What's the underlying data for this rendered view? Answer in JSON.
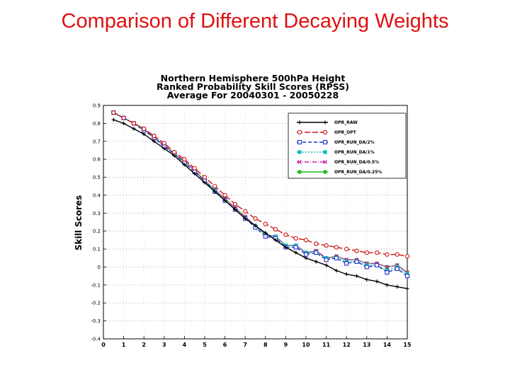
{
  "slide": {
    "title": "Comparison of Different Decaying Weights"
  },
  "chart_data": {
    "type": "line",
    "title_lines": [
      "Northern Hemisphere 500hPa Height",
      "Ranked Probability Skill Scores (RPSS)",
      "Average For 20040301 - 20050228"
    ],
    "xlabel": "",
    "ylabel": "Skill Scores",
    "xlim": [
      0,
      15
    ],
    "ylim": [
      -0.4,
      0.9
    ],
    "yticks": [
      0.9,
      0.8,
      0.7,
      0.6,
      0.5,
      0.4,
      0.3,
      0.2,
      0.1,
      0,
      -0.1,
      -0.2,
      -0.3,
      -0.4
    ],
    "ytick_labels": [
      "0.9",
      "0.8",
      "0.7",
      "0.6",
      "0.5",
      "0.4",
      "0.3",
      "0.2",
      "0.1",
      "0",
      "-0.1",
      "-0.2",
      "-0.3",
      "-0.4"
    ],
    "xticks": [
      0,
      1,
      2,
      3,
      4,
      5,
      6,
      7,
      8,
      9,
      10,
      11,
      12,
      13,
      14,
      15
    ],
    "xtick_labels": [
      "0",
      "1",
      "2",
      "3",
      "4",
      "5",
      "6",
      "7",
      "8",
      "9",
      "10",
      "11",
      "12",
      "13",
      "14",
      "15"
    ],
    "grid": true,
    "legend_position": "top-right",
    "x": [
      0.5,
      1,
      1.5,
      2,
      2.5,
      3,
      3.5,
      4,
      4.5,
      5,
      5.5,
      6,
      6.5,
      7,
      7.5,
      8,
      8.5,
      9,
      9.5,
      10,
      10.5,
      11,
      11.5,
      12,
      12.5,
      13,
      13.5,
      14,
      14.5,
      15
    ],
    "series": [
      {
        "name": "OPR_RAW",
        "color": "#000000",
        "dash": "",
        "marker": "plus",
        "values": [
          0.82,
          0.8,
          0.77,
          0.74,
          0.7,
          0.66,
          0.62,
          0.57,
          0.52,
          0.47,
          0.42,
          0.37,
          0.32,
          0.27,
          0.23,
          0.19,
          0.15,
          0.11,
          0.08,
          0.05,
          0.03,
          0.01,
          -0.02,
          -0.04,
          -0.05,
          -0.07,
          -0.08,
          -0.1,
          -0.11,
          -0.12
        ]
      },
      {
        "name": "OPR_OPT",
        "color": "#cc1111",
        "dash": "8 3",
        "marker": "circle",
        "values": [
          0.86,
          0.83,
          0.8,
          0.77,
          0.73,
          0.69,
          0.64,
          0.6,
          0.55,
          0.5,
          0.45,
          0.4,
          0.35,
          0.31,
          0.27,
          0.24,
          0.21,
          0.18,
          0.16,
          0.15,
          0.13,
          0.12,
          0.11,
          0.1,
          0.09,
          0.08,
          0.08,
          0.07,
          0.07,
          0.06
        ]
      },
      {
        "name": "OPR_RUN_DA/2%",
        "color": "#2233cc",
        "dash": "5 3",
        "marker": "square",
        "values": [
          0.86,
          0.83,
          0.8,
          0.76,
          0.72,
          0.67,
          0.63,
          0.58,
          0.53,
          0.48,
          0.42,
          0.37,
          0.32,
          0.27,
          0.22,
          0.17,
          0.16,
          0.11,
          0.11,
          0.07,
          0.08,
          0.04,
          0.05,
          0.02,
          0.03,
          0.0,
          0.01,
          -0.03,
          -0.01,
          -0.05
        ]
      },
      {
        "name": "OPR_RUN_DA/1%",
        "color": "#11bbbb",
        "dash": "2 2",
        "marker": "fsquare",
        "values": [
          0.86,
          0.83,
          0.8,
          0.76,
          0.72,
          0.67,
          0.63,
          0.58,
          0.53,
          0.48,
          0.43,
          0.37,
          0.32,
          0.27,
          0.23,
          0.18,
          0.17,
          0.12,
          0.12,
          0.08,
          0.08,
          0.05,
          0.05,
          0.03,
          0.03,
          0.01,
          0.01,
          -0.02,
          0.0,
          -0.04
        ]
      },
      {
        "name": "OPR_RUN_DA/0.5%",
        "color": "#cc22aa",
        "dash": "6 2 1 2",
        "marker": "x",
        "values": [
          0.86,
          0.83,
          0.8,
          0.77,
          0.72,
          0.68,
          0.63,
          0.59,
          0.54,
          0.48,
          0.43,
          0.38,
          0.33,
          0.28,
          0.23,
          0.18,
          0.17,
          0.12,
          0.12,
          0.08,
          0.09,
          0.05,
          0.06,
          0.04,
          0.04,
          0.02,
          0.02,
          0.0,
          0.01,
          -0.03
        ]
      },
      {
        "name": "OPR_RUN_DA/0.25%",
        "color": "#22bb22",
        "dash": "",
        "marker": "fcircle",
        "values": [
          0.86,
          0.83,
          0.8,
          0.77,
          0.72,
          0.68,
          0.63,
          0.59,
          0.54,
          0.48,
          0.43,
          0.38,
          0.33,
          0.28,
          0.23,
          0.18,
          0.17,
          0.12,
          0.12,
          0.08,
          0.09,
          0.05,
          0.06,
          0.04,
          0.04,
          0.02,
          0.02,
          0.0,
          0.01,
          -0.03
        ]
      }
    ]
  }
}
